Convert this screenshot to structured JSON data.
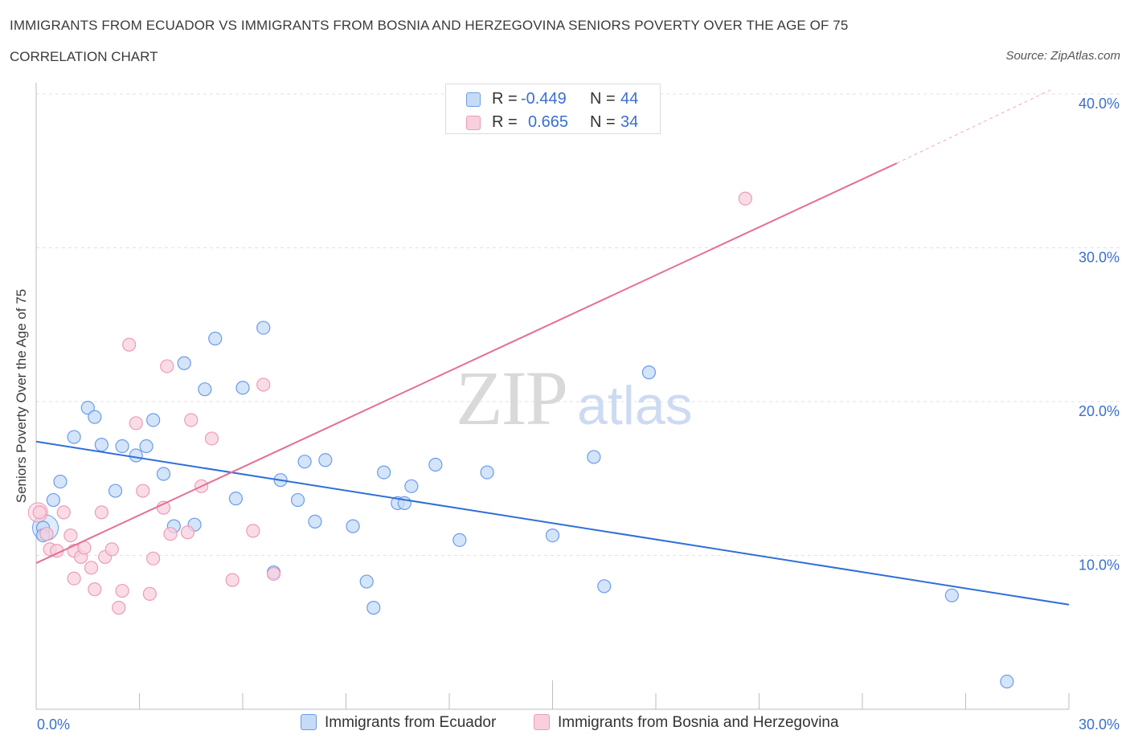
{
  "chart_data": {
    "type": "scatter",
    "title": "IMMIGRANTS FROM ECUADOR VS IMMIGRANTS FROM BOSNIA AND HERZEGOVINA SENIORS POVERTY OVER THE AGE OF 75",
    "subtitle": "CORRELATION CHART",
    "source": "Source: ZipAtlas.com",
    "ylabel": "Seniors Poverty Over the Age of 75",
    "xlabel": "",
    "xlim": [
      0,
      30
    ],
    "ylim": [
      0,
      40
    ],
    "x_tick_labels": [
      "0.0%",
      "30.0%"
    ],
    "y_tick_labels": [
      "10.0%",
      "20.0%",
      "30.0%",
      "40.0%"
    ],
    "y_ticks": [
      10,
      20,
      30,
      40
    ],
    "grid": true,
    "watermark": {
      "zip": "ZIP",
      "atlas": "atlas"
    },
    "legend_stats": [
      {
        "r_label": "R =",
        "r_value": "-0.449",
        "n_label": "N =",
        "n_value": "44"
      },
      {
        "r_label": "R =",
        "r_value": "0.665",
        "n_label": "N =",
        "n_value": "34"
      }
    ],
    "series": [
      {
        "name": "Immigrants from Ecuador",
        "color": "#6b9de8",
        "fill": "#c6dbf7",
        "line_color": "#2f6fd6",
        "trend": {
          "x0": 0,
          "y0": 17.4,
          "x1": 30,
          "y1": 6.8
        },
        "points": [
          [
            0.2,
            11.8
          ],
          [
            0.2,
            11.3
          ],
          [
            0.5,
            13.6
          ],
          [
            0.7,
            14.8
          ],
          [
            1.1,
            17.7
          ],
          [
            1.5,
            19.6
          ],
          [
            1.7,
            19.0
          ],
          [
            1.9,
            17.2
          ],
          [
            2.3,
            14.2
          ],
          [
            2.5,
            17.1
          ],
          [
            2.9,
            16.5
          ],
          [
            3.2,
            17.1
          ],
          [
            3.4,
            18.8
          ],
          [
            3.7,
            15.3
          ],
          [
            4.0,
            11.9
          ],
          [
            4.3,
            22.5
          ],
          [
            4.6,
            12.0
          ],
          [
            4.9,
            20.8
          ],
          [
            5.2,
            24.1
          ],
          [
            5.8,
            13.7
          ],
          [
            6.0,
            20.9
          ],
          [
            6.6,
            24.8
          ],
          [
            6.9,
            8.9
          ],
          [
            7.1,
            14.9
          ],
          [
            7.6,
            13.6
          ],
          [
            7.8,
            16.1
          ],
          [
            8.1,
            12.2
          ],
          [
            8.4,
            16.2
          ],
          [
            9.2,
            11.9
          ],
          [
            9.6,
            8.3
          ],
          [
            9.8,
            6.6
          ],
          [
            10.1,
            15.4
          ],
          [
            10.5,
            13.4
          ],
          [
            10.7,
            13.4
          ],
          [
            10.9,
            14.5
          ],
          [
            11.6,
            15.9
          ],
          [
            12.3,
            11.0
          ],
          [
            13.1,
            15.4
          ],
          [
            15.0,
            11.3
          ],
          [
            16.2,
            16.4
          ],
          [
            16.5,
            8.0
          ],
          [
            17.8,
            21.9
          ],
          [
            26.6,
            7.4
          ],
          [
            28.2,
            1.8
          ]
        ]
      },
      {
        "name": "Immigrants from Bosnia and Herzegovina",
        "color": "#ec9cb6",
        "fill": "#f8d0dd",
        "line_color": "#e46f96",
        "trend": {
          "x0": 0,
          "y0": 9.5,
          "x1": 25,
          "y1": 35.5
        },
        "trend_ext": {
          "x0": 25,
          "y0": 35.5,
          "x1": 29.5,
          "y1": 40.3
        },
        "points": [
          [
            0.1,
            12.8
          ],
          [
            0.3,
            11.4
          ],
          [
            0.4,
            10.4
          ],
          [
            0.6,
            10.3
          ],
          [
            0.8,
            12.8
          ],
          [
            1.0,
            11.3
          ],
          [
            1.1,
            10.3
          ],
          [
            1.1,
            8.5
          ],
          [
            1.3,
            9.9
          ],
          [
            1.4,
            10.5
          ],
          [
            1.6,
            9.2
          ],
          [
            1.7,
            7.8
          ],
          [
            1.9,
            12.8
          ],
          [
            2.0,
            9.9
          ],
          [
            2.2,
            10.4
          ],
          [
            2.4,
            6.6
          ],
          [
            2.5,
            7.7
          ],
          [
            2.7,
            23.7
          ],
          [
            2.9,
            18.6
          ],
          [
            3.1,
            14.2
          ],
          [
            3.3,
            7.5
          ],
          [
            3.4,
            9.8
          ],
          [
            3.7,
            13.1
          ],
          [
            3.8,
            22.3
          ],
          [
            3.9,
            11.4
          ],
          [
            4.4,
            11.5
          ],
          [
            4.5,
            18.8
          ],
          [
            4.8,
            14.5
          ],
          [
            5.1,
            17.6
          ],
          [
            5.7,
            8.4
          ],
          [
            6.3,
            11.6
          ],
          [
            6.6,
            21.1
          ],
          [
            6.9,
            8.8
          ],
          [
            20.6,
            33.2
          ]
        ]
      }
    ]
  }
}
